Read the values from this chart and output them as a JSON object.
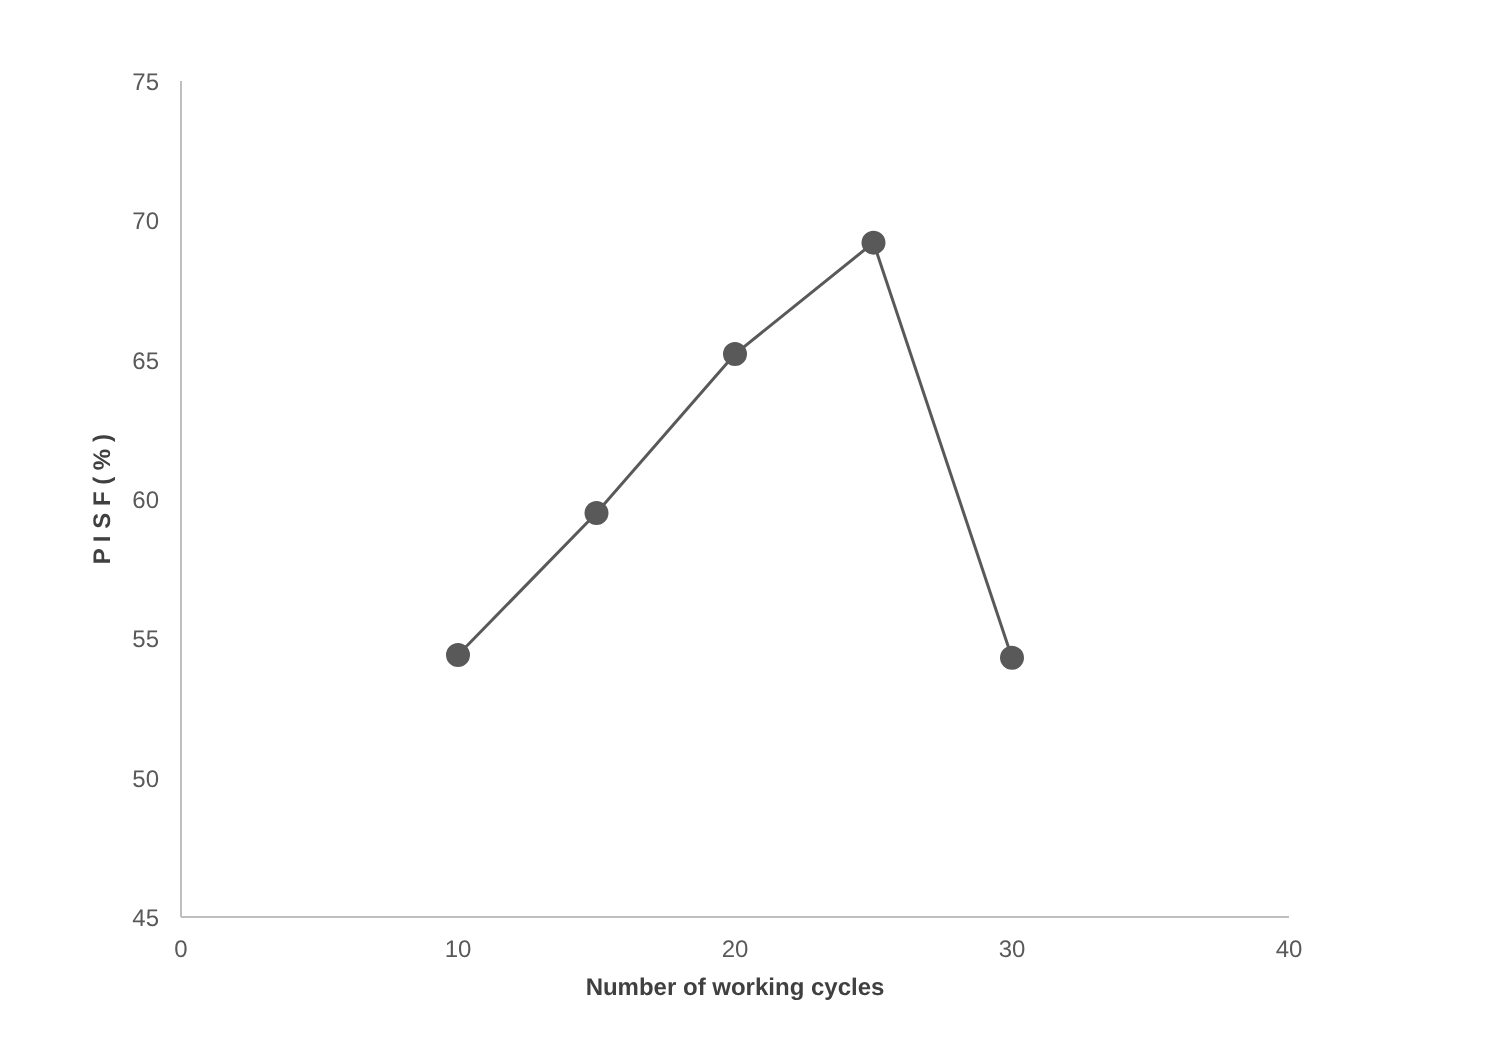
{
  "chart_data": {
    "type": "line",
    "xlabel": "Number of working cycles",
    "ylabel": "P I S F ( % )",
    "x": [
      10,
      15,
      20,
      25,
      30
    ],
    "series": [
      {
        "color": "#595959",
        "values": [
          54.4,
          59.5,
          65.2,
          69.2,
          54.3
        ]
      }
    ],
    "xlim": [
      0,
      40
    ],
    "xticks": [
      0,
      10,
      20,
      30,
      40
    ],
    "ylim": [
      45,
      75
    ],
    "yticks": [
      45,
      50,
      55,
      60,
      65,
      70,
      75
    ],
    "grid": false,
    "marker": "circle",
    "line_style": "solid"
  }
}
